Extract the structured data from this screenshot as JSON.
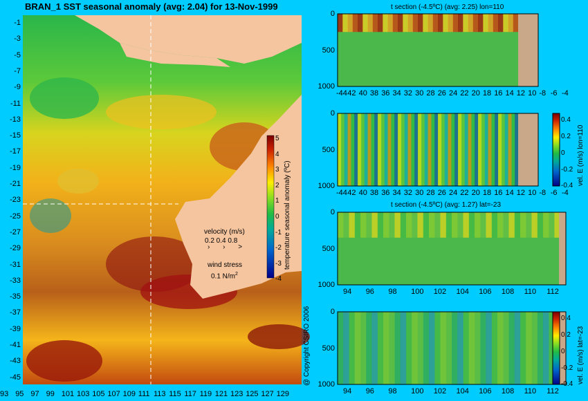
{
  "main_title": "BRAN_1  SST seasonal anomaly  (avg: 2.04)  for 13-Nov-1999",
  "copyright": "@ Copyright CSIRO 2006",
  "map": {
    "y_ticks": [
      "-1",
      "-3",
      "-5",
      "-7",
      "-9",
      "-11",
      "-13",
      "-15",
      "-17",
      "-19",
      "-21",
      "-23",
      "-25",
      "-27",
      "-29",
      "-31",
      "-33",
      "-35",
      "-37",
      "-39",
      "-41",
      "-43",
      "-45"
    ],
    "x_ticks": [
      "93",
      "95",
      "97",
      "99",
      "101",
      "103",
      "105",
      "107",
      "109",
      "111",
      "113",
      "115",
      "117",
      "119",
      "121",
      "123",
      "125",
      "127",
      "129"
    ],
    "colorbar_label": "temperature seasonal anomaly (ºC)",
    "colorbar_ticks": [
      "5",
      "4",
      "3",
      "2",
      "1",
      "0",
      "-1",
      "-2",
      "-3",
      "-4"
    ],
    "velocity_label": "velocity (m/s)",
    "velocity_scale": "0.2 0.4 0.8",
    "wind_label": "wind stress",
    "wind_scale_value": "0.1 N/m",
    "wind_scale_exp": "2",
    "section_lon": 110,
    "section_lat": -23
  },
  "panels": [
    {
      "title": "t section (-4.5ºC)  (avg: 2.25)  lon=110",
      "y_ticks": [
        "0",
        "500",
        "1000"
      ],
      "x_ticks": [
        "-44",
        "42",
        "40",
        "38",
        "36",
        "34",
        "32",
        "30",
        "28",
        "26",
        "24",
        "22",
        "20",
        "18",
        "16",
        "14",
        "12",
        "10",
        "-8",
        "-6",
        "-4"
      ]
    },
    {
      "title": "",
      "y_ticks": [
        "0",
        "500",
        "1000"
      ],
      "x_ticks": [
        "-44",
        "42",
        "40",
        "38",
        "36",
        "34",
        "32",
        "30",
        "28",
        "26",
        "24",
        "22",
        "20",
        "18",
        "16",
        "14",
        "12",
        "10",
        "-8",
        "-6",
        "-4"
      ],
      "colorbar_label": "vel. E (m/s) lon=110",
      "colorbar_ticks": [
        "0.4",
        "0.2",
        "0",
        "-0.2",
        "-0.4"
      ]
    },
    {
      "title": "t section (-4.5ºC)  (avg: 1.27)  lat=-23",
      "y_ticks": [
        "0",
        "500",
        "1000"
      ],
      "x_ticks": [
        "94",
        "96",
        "98",
        "100",
        "102",
        "104",
        "106",
        "108",
        "110",
        "112"
      ]
    },
    {
      "title": "",
      "y_ticks": [
        "0",
        "500",
        "1000"
      ],
      "x_ticks": [
        "94",
        "96",
        "98",
        "100",
        "102",
        "104",
        "106",
        "108",
        "110",
        "112"
      ],
      "colorbar_label": "vel. E (m/s) lat=-23",
      "colorbar_ticks": [
        "0.4",
        "0.2",
        "0",
        "-0.2",
        "-0.4"
      ]
    }
  ],
  "chart_data": [
    {
      "type": "heatmap",
      "title": "BRAN_1  SST seasonal anomaly  (avg: 2.04)  for 13-Nov-1999",
      "x_range": [
        93,
        130
      ],
      "y_range": [
        -45,
        0
      ],
      "colorbar_range": [
        -4,
        5
      ],
      "avg": 2.04
    },
    {
      "type": "heatmap",
      "title": "t section (-4.5ºC)  (avg: 2.25)  lon=110",
      "x_range": [
        -45,
        -3
      ],
      "y_range": [
        1000,
        0
      ],
      "avg": 2.25
    },
    {
      "type": "heatmap",
      "x_range": [
        -45,
        -3
      ],
      "y_range": [
        1000,
        0
      ],
      "colorbar_range": [
        -0.5,
        0.5
      ]
    },
    {
      "type": "heatmap",
      "title": "t section (-4.5ºC)  (avg: 1.27)  lat=-23",
      "x_range": [
        93,
        114
      ],
      "y_range": [
        1000,
        0
      ],
      "avg": 1.27
    },
    {
      "type": "heatmap",
      "x_range": [
        93,
        114
      ],
      "y_range": [
        1000,
        0
      ],
      "colorbar_range": [
        -0.5,
        0.5
      ]
    }
  ]
}
